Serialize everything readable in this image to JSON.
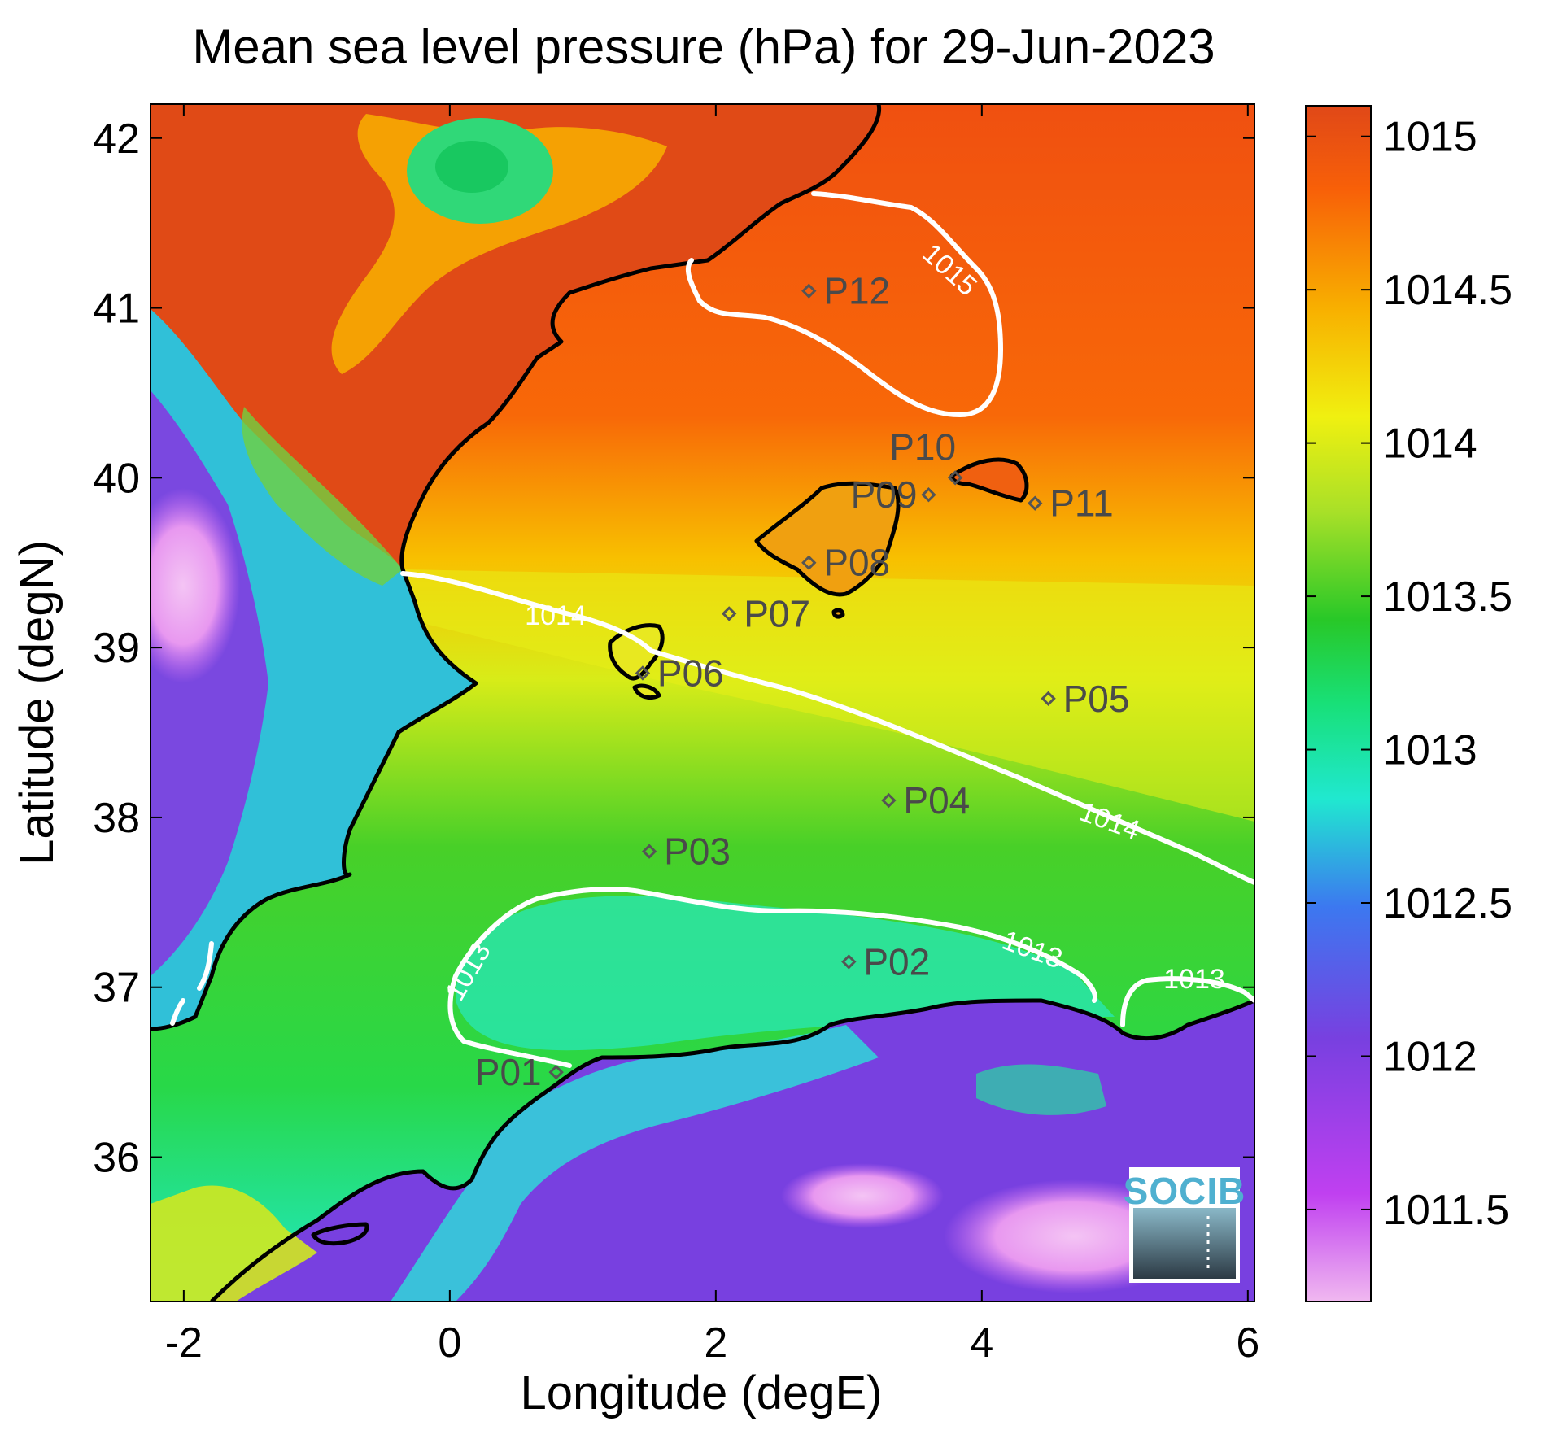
{
  "title": "Mean sea level pressure (hPa) for 29-Jun-2023",
  "xlabel": "Longitude (degE)",
  "ylabel": "Latitude (degN)",
  "x_ticks": [
    "-2",
    "0",
    "2",
    "4",
    "6"
  ],
  "y_ticks": [
    "42",
    "41",
    "40",
    "39",
    "38",
    "37",
    "36"
  ],
  "colorbar": {
    "min": 1011.2,
    "max": 1015.1,
    "ticks": [
      "1015",
      "1014.5",
      "1014",
      "1013.5",
      "1013",
      "1012.5",
      "1012",
      "1011.5"
    ],
    "colormap": [
      "#f0b8f0",
      "#c040f0",
      "#7840e0",
      "#3c78f0",
      "#20e8d0",
      "#18e078",
      "#28c828",
      "#a8e028",
      "#f0f010",
      "#f8b000",
      "#f86008",
      "#e04818"
    ]
  },
  "contours": [
    {
      "label": "1015"
    },
    {
      "label": "1014"
    },
    {
      "label": "1014"
    },
    {
      "label": "1013"
    },
    {
      "label": "1013"
    },
    {
      "label": "1013"
    }
  ],
  "stations": [
    {
      "id": "P01",
      "lon": 0.8,
      "lat": 36.5
    },
    {
      "id": "P02",
      "lon": 3.0,
      "lat": 37.15
    },
    {
      "id": "P03",
      "lon": 1.5,
      "lat": 37.8
    },
    {
      "id": "P04",
      "lon": 3.3,
      "lat": 38.1
    },
    {
      "id": "P05",
      "lon": 4.5,
      "lat": 38.7
    },
    {
      "id": "P06",
      "lon": 1.45,
      "lat": 38.85
    },
    {
      "id": "P07",
      "lon": 2.1,
      "lat": 39.2
    },
    {
      "id": "P08",
      "lon": 2.7,
      "lat": 39.5
    },
    {
      "id": "P09",
      "lon": 3.6,
      "lat": 39.9
    },
    {
      "id": "P10",
      "lon": 3.8,
      "lat": 40.0
    },
    {
      "id": "P11",
      "lon": 4.4,
      "lat": 39.85
    },
    {
      "id": "P12",
      "lon": 2.7,
      "lat": 41.1
    }
  ],
  "logo": {
    "text": "SOCIB"
  }
}
